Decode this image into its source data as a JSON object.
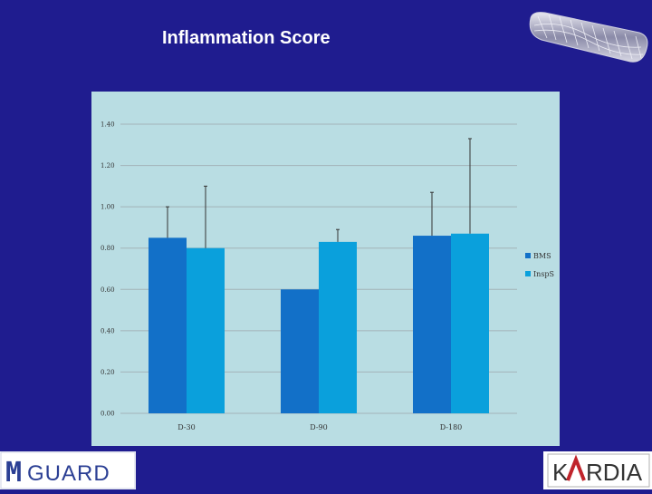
{
  "slide": {
    "title": "Inflammation Score",
    "background": "#1f1c8f"
  },
  "logos": {
    "left": "MGUARD",
    "right": "KARDIA"
  },
  "chart_data": {
    "type": "bar",
    "categories": [
      "D-30",
      "D-90",
      "D-180"
    ],
    "series": [
      {
        "name": "BMS",
        "values": [
          0.85,
          0.6,
          0.86
        ],
        "error_upper": [
          1.0,
          null,
          1.07
        ],
        "color": "#1270c8"
      },
      {
        "name": "InspS",
        "values": [
          0.8,
          0.83,
          0.87
        ],
        "error_upper": [
          1.1,
          0.89,
          1.33
        ],
        "color": "#0aa0dc"
      }
    ],
    "yticks": [
      "0.00",
      "0.20",
      "0.40",
      "0.60",
      "0.80",
      "1.00",
      "1.20",
      "1.40"
    ],
    "ylim": [
      0,
      1.4
    ],
    "grid": true,
    "legend_position": "right",
    "plot_background": "#b9dde3"
  }
}
